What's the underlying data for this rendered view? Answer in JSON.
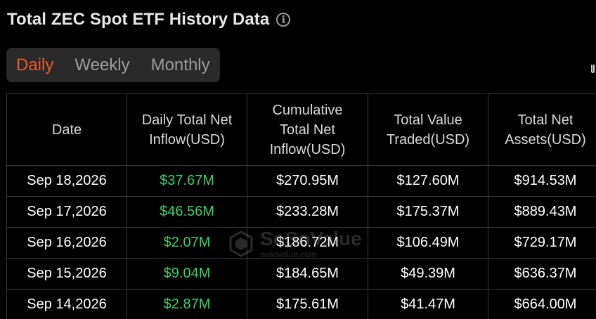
{
  "header": {
    "title": "Total ZEC Spot ETF History Data",
    "info_icon": "info-icon"
  },
  "tabs": [
    {
      "label": "Daily",
      "active": true
    },
    {
      "label": "Weekly",
      "active": false
    },
    {
      "label": "Monthly",
      "active": false
    }
  ],
  "table": {
    "columns": [
      "Date",
      "Daily Total Net Inflow(USD)",
      "Cumulative Total Net Inflow(USD)",
      "Total Value Traded(USD)",
      "Total Net Assets(USD)"
    ],
    "rows": [
      {
        "date": "Sep 18,2026",
        "inflow": "$37.67M",
        "cumulative": "$270.95M",
        "traded": "$127.60M",
        "assets": "$914.53M"
      },
      {
        "date": "Sep 17,2026",
        "inflow": "$46.56M",
        "cumulative": "$233.28M",
        "traded": "$175.37M",
        "assets": "$889.43M"
      },
      {
        "date": "Sep 16,2026",
        "inflow": "$2.07M",
        "cumulative": "$186.72M",
        "traded": "$106.49M",
        "assets": "$729.17M"
      },
      {
        "date": "Sep 15,2026",
        "inflow": "$9.04M",
        "cumulative": "$184.65M",
        "traded": "$49.39M",
        "assets": "$636.37M"
      },
      {
        "date": "Sep 14,2026",
        "inflow": "$2.87M",
        "cumulative": "$175.61M",
        "traded": "$41.47M",
        "assets": "$664.00M"
      }
    ]
  },
  "watermark": {
    "brand": "SoSoValue",
    "url": "sosovalue.com"
  },
  "colors": {
    "background": "#000000",
    "active_tab": "#f0562b",
    "positive": "#35d26b",
    "grid_line": "#3a3a3a"
  }
}
